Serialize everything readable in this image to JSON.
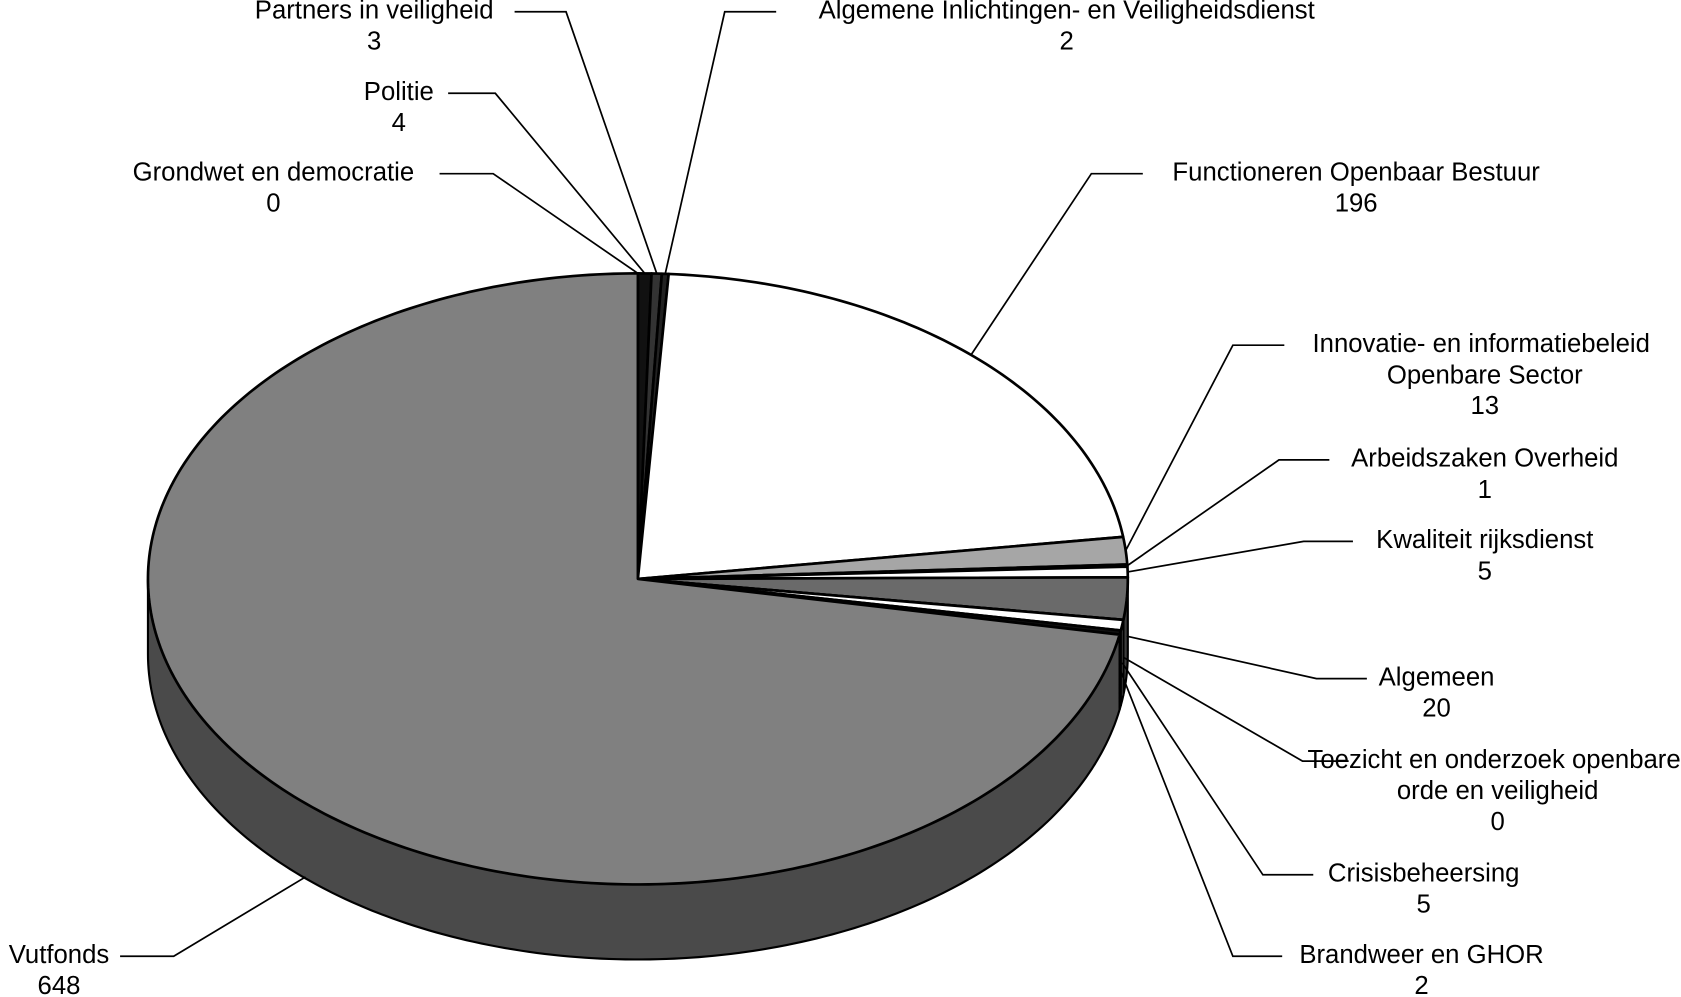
{
  "chart_data": {
    "type": "pie3d",
    "categories": [
      "Grondwet en democratie",
      "Politie",
      "Partners in veiligheid",
      "Algemene Inlichtingen- en Veiligheidsdienst",
      "Functioneren Openbaar Bestuur",
      "Innovatie- en informatiebeleid Openbare Sector",
      "Arbeidszaken Overheid",
      "Kwaliteit rijksdienst",
      "Algemeen",
      "Toezicht en onderzoek openbare orde en veiligheid",
      "Crisisbeheersing",
      "Brandweer en GHOR",
      "Vutfonds"
    ],
    "values": [
      0,
      4,
      3,
      2,
      196,
      13,
      1,
      5,
      20,
      0,
      5,
      2,
      648
    ],
    "colors": [
      "#c8c8c8",
      "#111111",
      "#333333",
      "#222222",
      "#ffffff",
      "#a6a6a6",
      "#111111",
      "#ffffff",
      "#6a6a6a",
      "#dddddd",
      "#ffffff",
      "#111111",
      "#808080"
    ]
  }
}
